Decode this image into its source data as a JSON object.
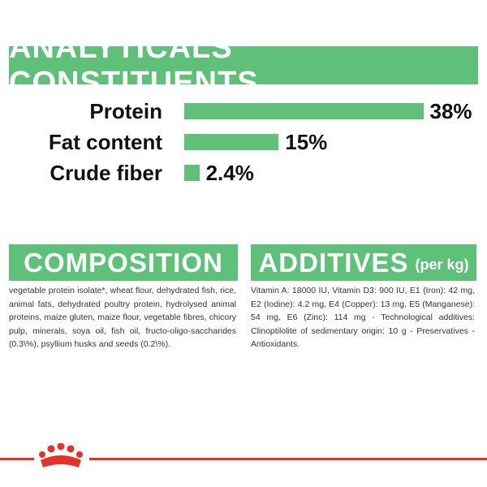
{
  "analyticals": {
    "title": "ANALYTICALS CONSTITUENTS",
    "rows": [
      {
        "label": "Protein",
        "value": "38%",
        "percent": 38
      },
      {
        "label": "Fat content",
        "value": "15%",
        "percent": 15
      },
      {
        "label": "Crude fiber",
        "value": "2.4%",
        "percent": 2.4
      }
    ]
  },
  "composition": {
    "title": "COMPOSITION",
    "text": "vegetable protein isolate*, wheat flour, dehydrated fish, rice, animal fats, dehydrated poultry protein, hydrolysed animal proteins, maize gluten, maize flour, vegetable fibres, chicory pulp, minerals, soya oil, fish oil, fructo-oligo-saccharides (0.3\\%), psyllium husks and seeds (0.2\\%)."
  },
  "additives": {
    "title": "ADDITIVES",
    "unit": "(per kg)",
    "text": "Vitamin A: 18000 IU, Vitamin D3: 900 IU, E1 (Iron): 42 mg, E2 (Iodine): 4.2 mg, E4 (Copper): 13 mg, E5 (Manganese): 54 mg, E6 (Zinc): 114 mg - Technological additives: Clinoptilolite of sedimentary origin: 10 g - Preservatives - Antioxidants."
  },
  "colors": {
    "accent_green": "#5fc07a",
    "brand_red": "#e4322b"
  },
  "footer": {
    "logo_icon": "royal-canin-crown-icon"
  }
}
